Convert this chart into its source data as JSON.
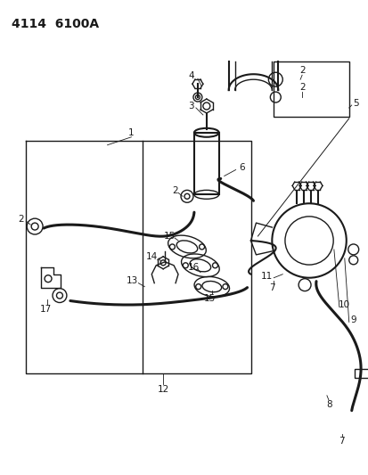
{
  "title": "4114  6100A",
  "bg_color": "#ffffff",
  "line_color": "#1a1a1a",
  "title_fontsize": 10,
  "label_fontsize": 7.5,
  "fig_width": 4.14,
  "fig_height": 5.33,
  "dpi": 100
}
